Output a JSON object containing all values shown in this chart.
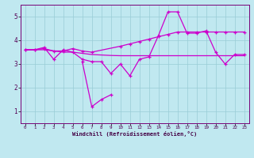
{
  "background_color": "#c0e8f0",
  "grid_color": "#99ccd6",
  "line_color": "#cc00cc",
  "xlim": [
    -0.5,
    23.5
  ],
  "ylim": [
    0.5,
    5.5
  ],
  "yticks": [
    1,
    2,
    3,
    4,
    5
  ],
  "xticks": [
    0,
    1,
    2,
    3,
    4,
    5,
    6,
    7,
    8,
    9,
    10,
    11,
    12,
    13,
    14,
    15,
    16,
    17,
    18,
    19,
    20,
    21,
    22,
    23
  ],
  "xlabel": "Windchill (Refroidissement éolien,°C)",
  "series": [
    {
      "x": [
        0,
        1,
        2,
        3,
        4,
        5,
        6,
        7,
        8,
        9,
        10,
        11,
        12,
        13,
        14,
        15,
        16,
        17,
        18,
        19,
        20,
        21,
        22,
        23
      ],
      "y": [
        3.6,
        3.6,
        3.7,
        3.2,
        3.6,
        3.5,
        3.2,
        3.1,
        3.1,
        2.6,
        3.0,
        2.5,
        3.2,
        3.3,
        4.2,
        5.2,
        5.2,
        4.3,
        4.3,
        4.4,
        3.5,
        3.0,
        3.4,
        3.4
      ],
      "style": "-",
      "marker": "+"
    },
    {
      "x": [
        0,
        1,
        2,
        3,
        4,
        5,
        6,
        7,
        10,
        11,
        12,
        13,
        14,
        15,
        16,
        17,
        18,
        19,
        20,
        21,
        22,
        23
      ],
      "y": [
        3.6,
        3.6,
        3.65,
        3.55,
        3.55,
        3.65,
        3.55,
        3.5,
        3.75,
        3.85,
        3.95,
        4.05,
        4.15,
        4.25,
        4.35,
        4.35,
        4.35,
        4.35,
        4.35,
        4.35,
        4.35,
        4.35
      ],
      "style": "-",
      "marker": "+"
    },
    {
      "x": [
        0,
        1,
        2,
        3,
        4,
        5,
        6,
        7,
        8,
        9,
        10,
        11,
        12,
        13,
        14,
        15,
        16,
        17,
        18,
        19,
        20,
        21,
        22,
        23
      ],
      "y": [
        3.6,
        3.6,
        3.6,
        3.55,
        3.5,
        3.5,
        3.45,
        3.4,
        3.38,
        3.36,
        3.35,
        3.35,
        3.35,
        3.35,
        3.35,
        3.35,
        3.35,
        3.35,
        3.35,
        3.35,
        3.35,
        3.35,
        3.35,
        3.35
      ],
      "style": "-",
      "marker": null
    },
    {
      "x": [
        6,
        7,
        8,
        9
      ],
      "y": [
        3.1,
        1.2,
        1.5,
        1.7
      ],
      "style": "-",
      "marker": "+"
    }
  ]
}
